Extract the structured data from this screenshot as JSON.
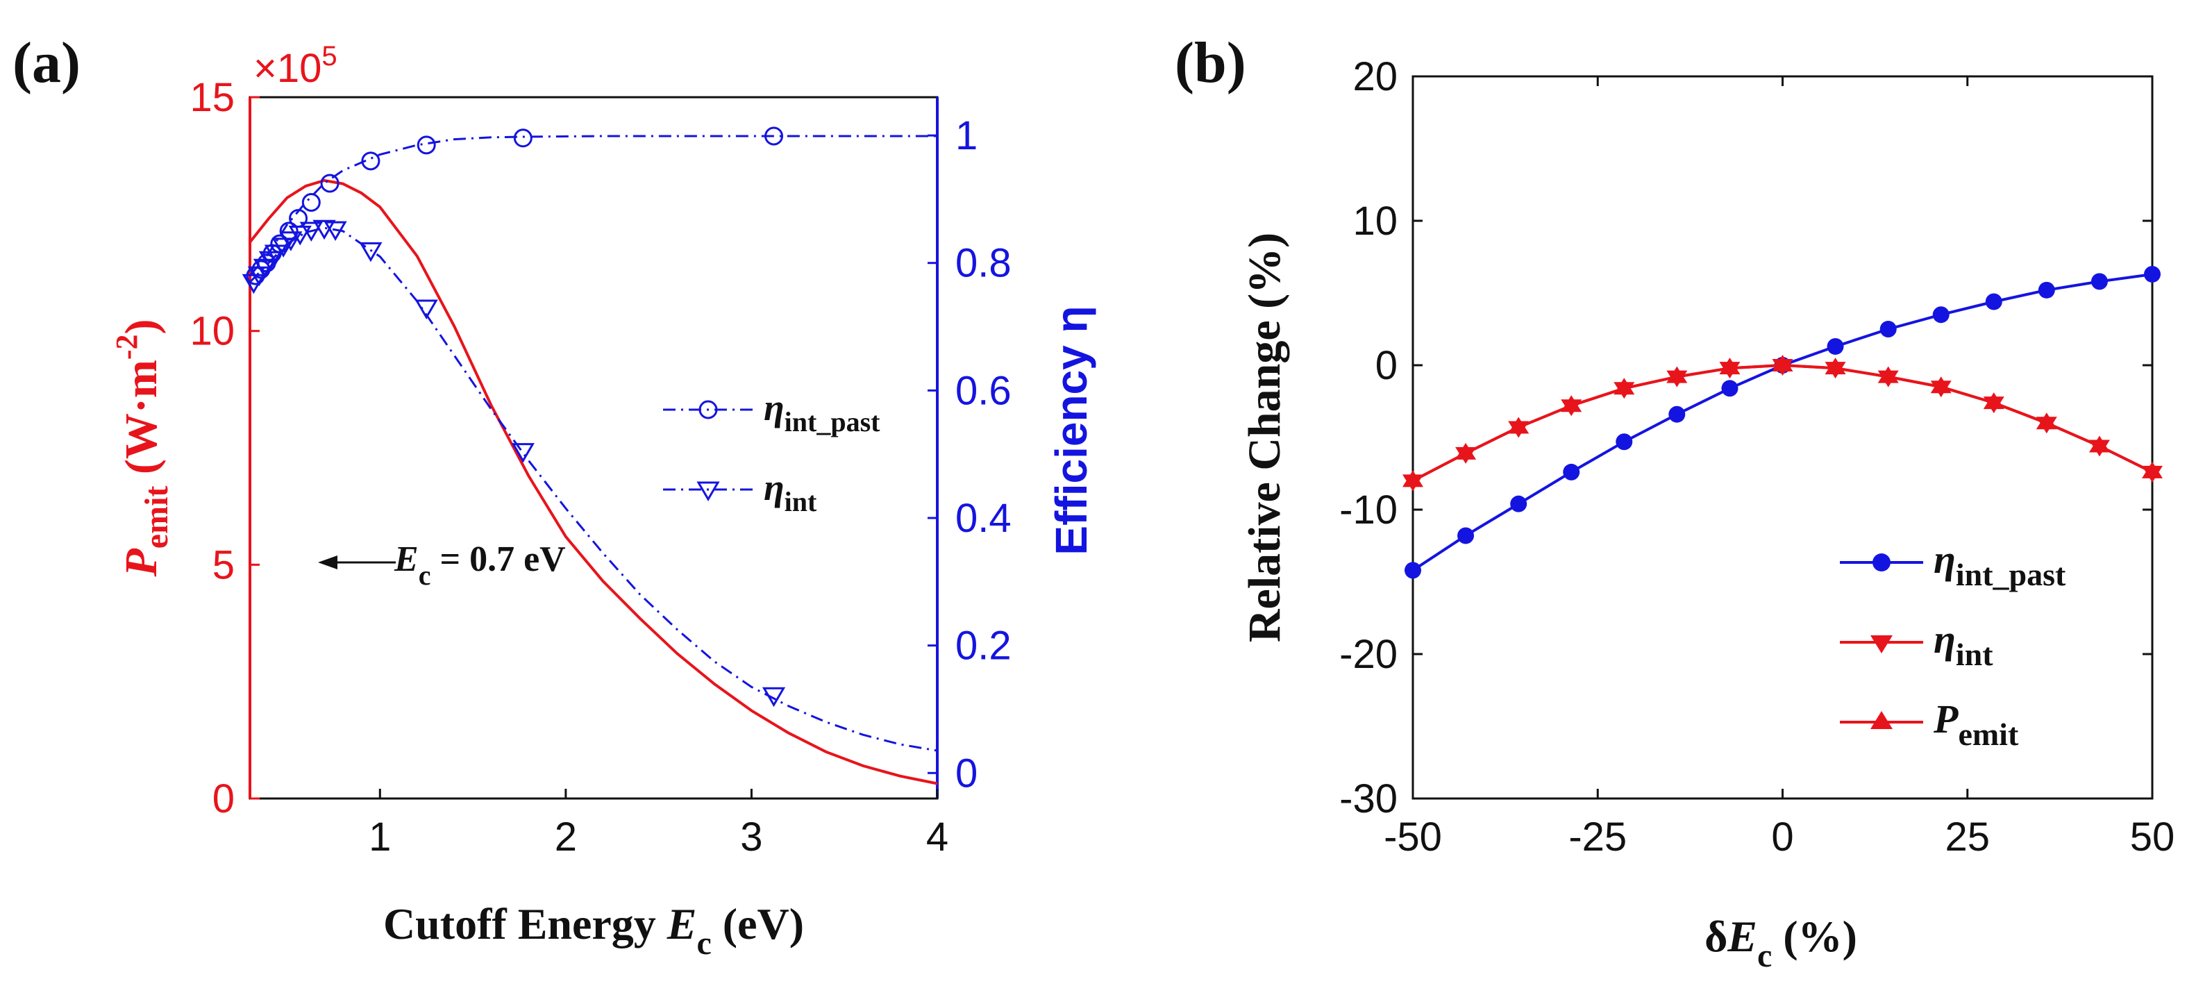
{
  "colors": {
    "red": "#e8141b",
    "blue": "#1414e0",
    "black": "#111111"
  },
  "chart_data": [
    {
      "panel": "(a)",
      "type": "line",
      "xlabel": {
        "pre": "Cutoff Energy ",
        "sym": "E",
        "sub": "c",
        "post": " (eV)"
      },
      "xlim": [
        0.3,
        4
      ],
      "xticks": [
        1,
        2,
        3,
        4
      ],
      "y_left": {
        "label": {
          "sym": "P",
          "sub": "emit",
          "unit_pre": " (W·m",
          "sup": "-2",
          "unit_post": ")"
        },
        "lim": [
          0,
          15
        ],
        "ticks": [
          0,
          5,
          10,
          15
        ],
        "exponent_pre": "×10",
        "exponent_sup": "5",
        "color": "#e8141b"
      },
      "y_right": {
        "label": "Efficiency η",
        "lim": [
          -0.04,
          1.06
        ],
        "ticks": [
          0,
          0.2,
          0.4,
          0.6,
          0.8,
          1
        ],
        "color": "#1414e0"
      },
      "series": [
        {
          "key": "P_emit",
          "axis": "left",
          "style": "solid",
          "marker": "none",
          "color": "#e8141b",
          "x": [
            0.3,
            0.4,
            0.5,
            0.6,
            0.7,
            0.8,
            0.9,
            1.0,
            1.2,
            1.4,
            1.6,
            1.8,
            2.0,
            2.2,
            2.4,
            2.6,
            2.8,
            3.0,
            3.2,
            3.4,
            3.6,
            3.8,
            4.0
          ],
          "y": [
            11.9,
            12.4,
            12.85,
            13.1,
            13.22,
            13.15,
            12.95,
            12.65,
            11.6,
            10.1,
            8.4,
            6.9,
            5.6,
            4.65,
            3.85,
            3.1,
            2.45,
            1.88,
            1.4,
            1.0,
            0.7,
            0.48,
            0.32
          ]
        },
        {
          "key": "eta_int_past",
          "axis": "right",
          "style": "dashdot",
          "marker": "circle",
          "color": "#1414e0",
          "x": [
            0.3,
            0.4,
            0.5,
            0.6,
            0.7,
            0.8,
            1.0,
            1.2,
            1.4,
            1.6,
            1.8,
            2.2,
            2.6,
            3.0,
            3.4,
            4.0
          ],
          "y": [
            0.78,
            0.815,
            0.86,
            0.895,
            0.925,
            0.945,
            0.97,
            0.985,
            0.994,
            0.997,
            0.998,
            0.999,
            0.999,
            0.999,
            0.999,
            0.999
          ],
          "marker_x": [
            0.33,
            0.36,
            0.39,
            0.42,
            0.46,
            0.51,
            0.56,
            0.63,
            0.73,
            0.95,
            1.25,
            1.77,
            3.12
          ],
          "marker_y": [
            0.78,
            0.79,
            0.8,
            0.815,
            0.83,
            0.85,
            0.87,
            0.895,
            0.925,
            0.96,
            0.985,
            0.996,
            0.999
          ]
        },
        {
          "key": "eta_int",
          "axis": "right",
          "style": "dashdot",
          "marker": "triangle-down",
          "color": "#1414e0",
          "x": [
            0.3,
            0.4,
            0.5,
            0.6,
            0.7,
            0.8,
            1.0,
            1.2,
            1.4,
            1.6,
            1.8,
            2.0,
            2.2,
            2.4,
            2.6,
            2.8,
            3.0,
            3.2,
            3.4,
            3.6,
            3.8,
            4.0
          ],
          "y": [
            0.77,
            0.8,
            0.83,
            0.848,
            0.855,
            0.85,
            0.81,
            0.74,
            0.655,
            0.57,
            0.49,
            0.415,
            0.345,
            0.28,
            0.225,
            0.175,
            0.135,
            0.105,
            0.08,
            0.06,
            0.045,
            0.035
          ],
          "marker_x": [
            0.32,
            0.35,
            0.38,
            0.41,
            0.44,
            0.48,
            0.52,
            0.57,
            0.63,
            0.7,
            0.76,
            0.95,
            1.25,
            1.77,
            3.12
          ],
          "marker_y": [
            0.77,
            0.782,
            0.794,
            0.806,
            0.816,
            0.827,
            0.837,
            0.846,
            0.852,
            0.855,
            0.853,
            0.82,
            0.73,
            0.505,
            0.122
          ]
        }
      ],
      "legend": {
        "placement": "center-right",
        "items": [
          {
            "key": "eta_int_past",
            "sym": "η",
            "sub": "int_past",
            "marker": "circle"
          },
          {
            "key": "eta_int",
            "sym": "η",
            "sub": "int",
            "marker": "triangle-down"
          }
        ]
      },
      "annotation": {
        "sym": "E",
        "sub": "c",
        "text": " = 0.7 eV",
        "arrow": "left"
      }
    },
    {
      "panel": "(b)",
      "type": "line",
      "xlabel": {
        "pre": "δ",
        "sym": "E",
        "sub": "c",
        "post": " (%)"
      },
      "ylabel": "Relative Change (%)",
      "xlim": [
        -50,
        50
      ],
      "ylim": [
        -30,
        20
      ],
      "xticks": [
        -50,
        -25,
        0,
        25,
        50
      ],
      "yticks": [
        -30,
        -20,
        -10,
        0,
        10,
        20
      ],
      "series": [
        {
          "key": "eta_int_past",
          "marker": "circle",
          "color": "#1414e0",
          "x": [
            -50,
            -42.86,
            -35.71,
            -28.57,
            -21.43,
            -14.29,
            -7.14,
            0,
            7.14,
            14.29,
            21.43,
            28.57,
            35.71,
            42.86,
            50
          ],
          "y": [
            -14.2,
            -11.8,
            -9.6,
            -7.4,
            -5.3,
            -3.4,
            -1.6,
            0,
            1.3,
            2.5,
            3.5,
            4.4,
            5.2,
            5.8,
            6.3
          ]
        },
        {
          "key": "eta_int",
          "marker": "triangle-down",
          "color": "#e8141b",
          "x": [
            -50,
            -42.86,
            -35.71,
            -28.57,
            -21.43,
            -14.29,
            -7.14,
            0,
            7.14,
            14.29,
            21.43,
            28.57,
            35.71,
            42.86,
            50
          ],
          "y": [
            -8.0,
            -6.1,
            -4.3,
            -2.8,
            -1.6,
            -0.8,
            -0.2,
            0,
            -0.2,
            -0.8,
            -1.5,
            -2.6,
            -4.0,
            -5.6,
            -7.4
          ]
        },
        {
          "key": "P_emit",
          "marker": "triangle-up",
          "color": "#e8141b",
          "x": [
            -50,
            -42.86,
            -35.71,
            -28.57,
            -21.43,
            -14.29,
            -7.14,
            0,
            7.14,
            14.29,
            21.43,
            28.57,
            35.71,
            42.86,
            50
          ],
          "y": [
            -8.0,
            -6.1,
            -4.3,
            -2.8,
            -1.6,
            -0.8,
            -0.2,
            0,
            -0.2,
            -0.8,
            -1.5,
            -2.6,
            -4.0,
            -5.6,
            -7.4
          ]
        }
      ],
      "legend": {
        "placement": "bottom-right",
        "items": [
          {
            "key": "eta_int_past",
            "sym": "η",
            "sub": "int_past",
            "marker": "circle",
            "color": "#1414e0"
          },
          {
            "key": "eta_int",
            "sym": "η",
            "sub": "int",
            "marker": "triangle-down",
            "color": "#e8141b"
          },
          {
            "key": "P_emit",
            "sym": "P",
            "sub": "emit",
            "marker": "triangle-up",
            "color": "#e8141b"
          }
        ]
      }
    }
  ]
}
